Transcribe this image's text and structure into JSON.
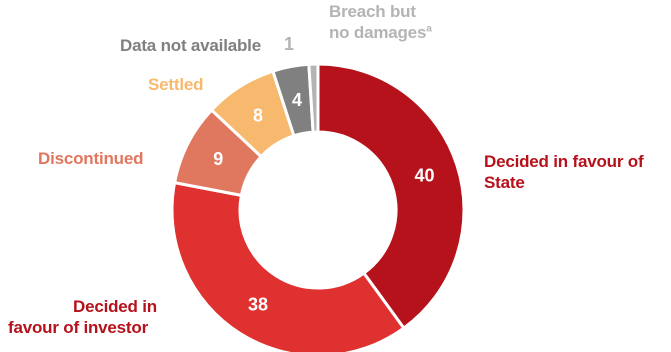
{
  "chart_data": {
    "type": "pie",
    "style": "donut",
    "start": "top",
    "direction": "clockwise",
    "slices": [
      {
        "label_lines": [
          "Decided in favour of",
          "State"
        ],
        "value": 40,
        "color": "#b5121b",
        "label_color": "#b5121b",
        "value_text_color": "#ffffff"
      },
      {
        "label_lines": [
          "Decided in",
          "favour of investor"
        ],
        "value": 38,
        "color": "#e03131",
        "label_color": "#b5121b",
        "value_text_color": "#ffffff"
      },
      {
        "label_lines": [
          "Discontinued"
        ],
        "value": 9,
        "color": "#e0775f",
        "label_color": "#e0775f",
        "value_text_color": "#ffffff"
      },
      {
        "label_lines": [
          "Settled"
        ],
        "value": 8,
        "color": "#f7b96d",
        "label_color": "#f7b96d",
        "value_text_color": "#ffffff"
      },
      {
        "label_lines": [
          "Data not available"
        ],
        "value": 4,
        "color": "#808080",
        "label_color": "#808080",
        "value_text_color": "#ffffff"
      },
      {
        "label_lines": [
          "Breach but",
          "no damages"
        ],
        "label_sup": "a",
        "value": 1,
        "color": "#b4b4b4",
        "label_color": "#b4b4b4",
        "value_text_color": "#b4b4b4"
      }
    ]
  }
}
